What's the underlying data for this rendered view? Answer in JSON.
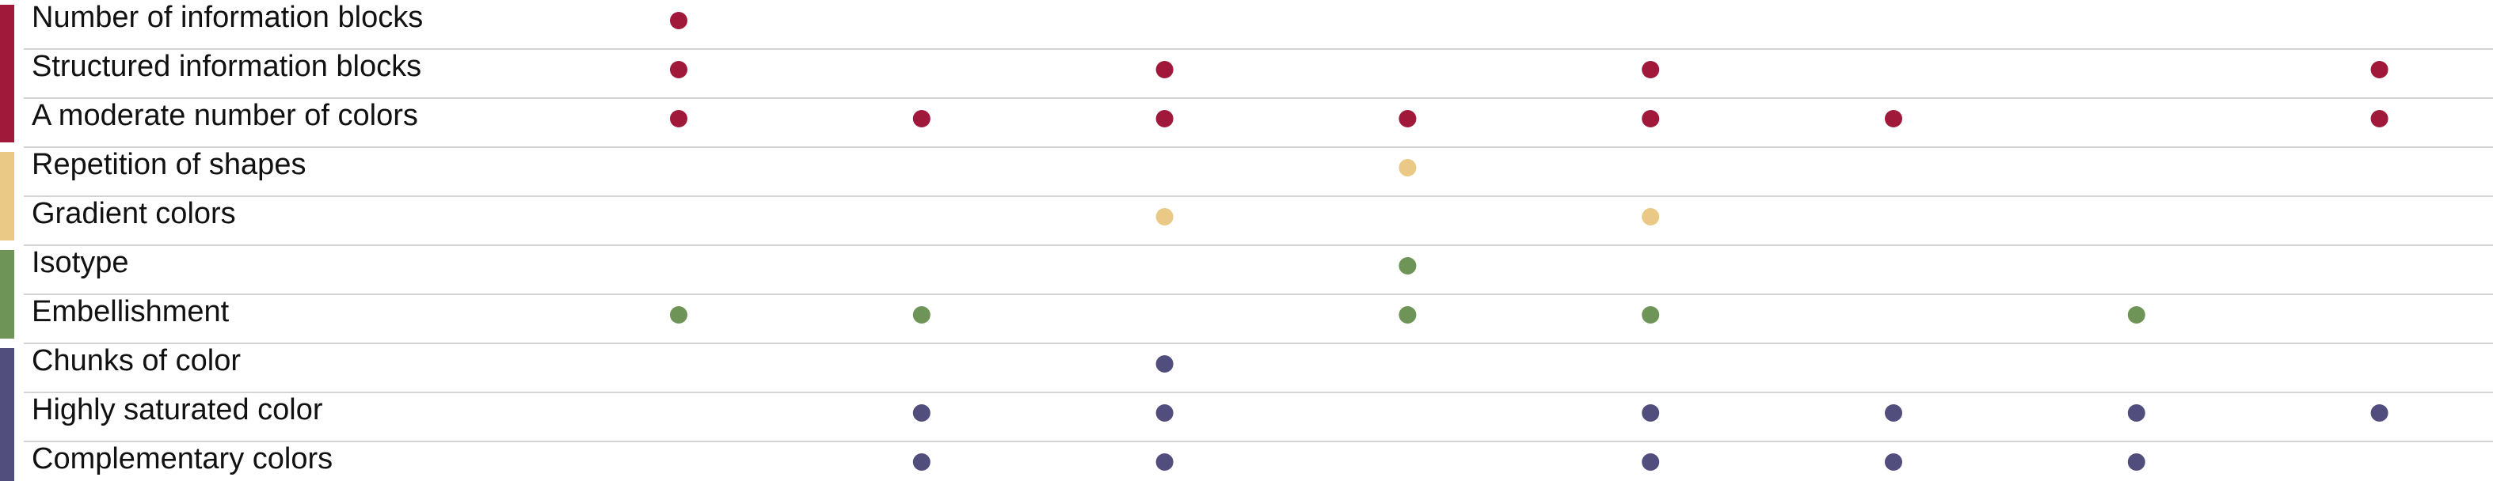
{
  "chart_data": {
    "type": "scatter",
    "title": "",
    "xlabel": "",
    "ylabel": "",
    "columns": 8,
    "groups": [
      {
        "color": "#a0183a",
        "rows": [
          0,
          1,
          2
        ]
      },
      {
        "color": "#e9c985",
        "rows": [
          3,
          4
        ]
      },
      {
        "color": "#6e9457",
        "rows": [
          5,
          6
        ]
      },
      {
        "color": "#514e7e",
        "rows": [
          7,
          8,
          9
        ]
      }
    ],
    "rows": [
      {
        "label": "Number of information blocks",
        "group": 0,
        "dots": [
          1
        ]
      },
      {
        "label": "Structured information blocks",
        "group": 0,
        "dots": [
          1,
          3,
          5,
          8
        ]
      },
      {
        "label": "A moderate number of colors",
        "group": 0,
        "dots": [
          1,
          2,
          3,
          4,
          5,
          6,
          8
        ]
      },
      {
        "label": "Repetition of shapes",
        "group": 1,
        "dots": [
          4
        ]
      },
      {
        "label": "Gradient colors",
        "group": 1,
        "dots": [
          3,
          5
        ]
      },
      {
        "label": "Isotype",
        "group": 2,
        "dots": [
          4
        ]
      },
      {
        "label": "Embellishment",
        "group": 2,
        "dots": [
          1,
          2,
          4,
          5,
          7
        ]
      },
      {
        "label": "Chunks of color",
        "group": 3,
        "dots": [
          3
        ]
      },
      {
        "label": "Highly saturated color",
        "group": 3,
        "dots": [
          2,
          3,
          5,
          6,
          7,
          8
        ]
      },
      {
        "label": "Complementary colors",
        "group": 3,
        "dots": [
          2,
          3,
          5,
          6,
          7
        ]
      }
    ]
  }
}
